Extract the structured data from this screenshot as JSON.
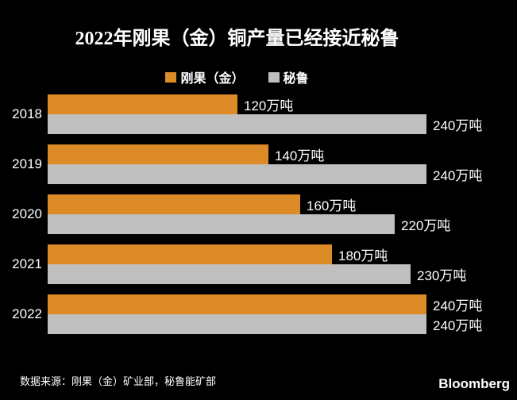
{
  "chart_data": {
    "type": "bar",
    "orientation": "horizontal",
    "title": "2022年刚果（金）铜产量已经接近秘鲁",
    "categories": [
      "2018",
      "2019",
      "2020",
      "2021",
      "2022"
    ],
    "series": [
      {
        "name": "刚果（金）",
        "color": "#dd8b27",
        "values": [
          120,
          140,
          160,
          180,
          240
        ]
      },
      {
        "name": "秘鲁",
        "color": "#bfbfbf",
        "values": [
          240,
          240,
          220,
          230,
          240
        ]
      }
    ],
    "unit": "万吨",
    "value_labels": [
      [
        "120万吨",
        "140万吨",
        "160万吨",
        "180万吨",
        "240万吨"
      ],
      [
        "240万吨",
        "240万吨",
        "220万吨",
        "230万吨",
        "240万吨"
      ]
    ],
    "xlim": [
      0,
      240
    ],
    "grid": false,
    "legend_position": "top-center",
    "background": "#000000",
    "text_color": "#ffffff"
  },
  "footer": {
    "source": "数据来源：刚果（金）矿业部，秘鲁能矿部",
    "brand": "Bloomberg"
  }
}
